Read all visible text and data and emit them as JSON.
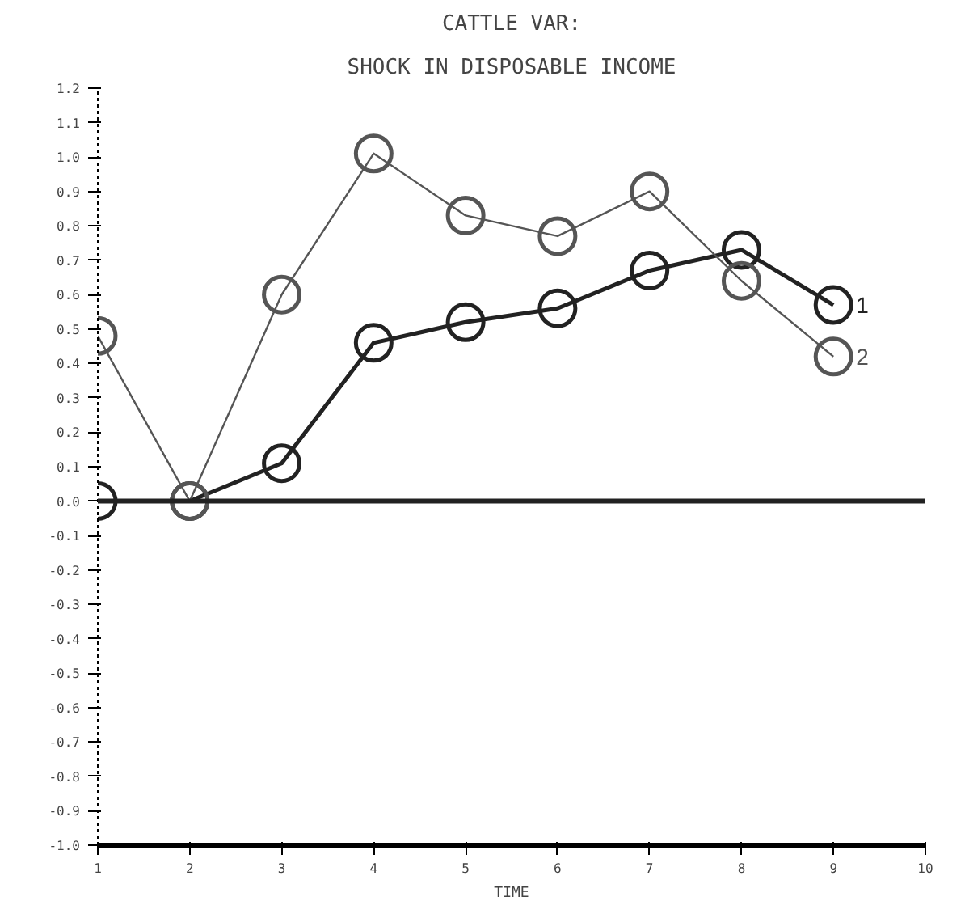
{
  "chart_data": {
    "type": "line",
    "title": "CATTLE VAR:",
    "subtitle": "SHOCK IN DISPOSABLE INCOME",
    "xlabel": "TIME",
    "x": [
      1,
      2,
      3,
      4,
      5,
      6,
      7,
      8,
      9
    ],
    "series": [
      {
        "name": "1",
        "color": "#222222",
        "values": [
          0.0,
          0.0,
          0.11,
          0.46,
          0.52,
          0.56,
          0.67,
          0.73,
          0.57
        ]
      },
      {
        "name": "2",
        "color": "#555555",
        "values": [
          0.48,
          0.0,
          0.6,
          1.01,
          0.83,
          0.77,
          0.9,
          0.64,
          0.42
        ]
      }
    ],
    "xlim": [
      1,
      10
    ],
    "xticks": [
      1,
      2,
      3,
      4,
      5,
      6,
      7,
      8,
      9,
      10
    ],
    "ylim": [
      -1.0,
      1.2
    ],
    "yticks": [
      {
        "value": 1.2,
        "label": "1.2"
      },
      {
        "value": 1.1,
        "label": "1.1"
      },
      {
        "value": 1.0,
        "label": "1.0"
      },
      {
        "value": 0.9,
        "label": "0.9"
      },
      {
        "value": 0.8,
        "label": "0.8"
      },
      {
        "value": 0.7,
        "label": "0.7"
      },
      {
        "value": 0.6,
        "label": "0.6"
      },
      {
        "value": 0.5,
        "label": "0.5"
      },
      {
        "value": 0.4,
        "label": "0.4"
      },
      {
        "value": 0.3,
        "label": "0.3"
      },
      {
        "value": 0.2,
        "label": "0.2"
      },
      {
        "value": 0.1,
        "label": "0.1"
      },
      {
        "value": 0.0,
        "label": "0.0"
      },
      {
        "value": -0.1,
        "label": "-0.1"
      },
      {
        "value": -0.2,
        "label": "-0.2"
      },
      {
        "value": -0.3,
        "label": "-0.3"
      },
      {
        "value": -0.4,
        "label": "-0.4"
      },
      {
        "value": -0.5,
        "label": "-0.5"
      },
      {
        "value": -0.6,
        "label": "-0.6"
      },
      {
        "value": -0.7,
        "label": "-0.7"
      },
      {
        "value": -0.8,
        "label": "-0.8"
      },
      {
        "value": -0.9,
        "label": "-0.9"
      },
      {
        "value": -1.0,
        "label": "-1.0"
      }
    ],
    "ref_lines": [
      {
        "axis": "y",
        "value": 0,
        "color": "#222222"
      }
    ],
    "marker": "circle",
    "line_style": "solid",
    "grid": false
  }
}
